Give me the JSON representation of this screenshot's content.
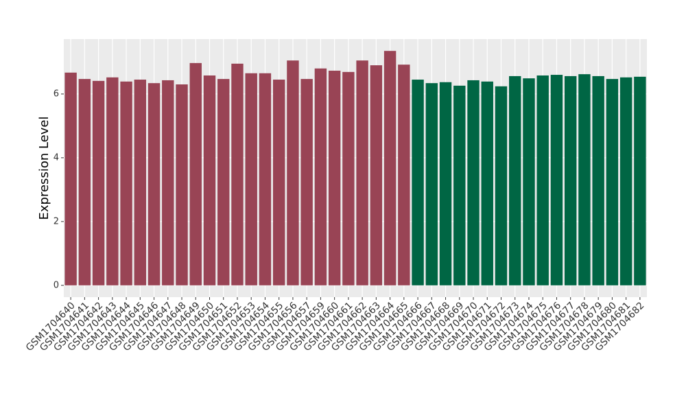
{
  "chart_data": {
    "type": "bar",
    "y_label": "Expression Level",
    "categories": [
      "GSM1704640",
      "GSM1704641",
      "GSM1704642",
      "GSM1704643",
      "GSM1704644",
      "GSM1704645",
      "GSM1704646",
      "GSM1704647",
      "GSM1704648",
      "GSM1704649",
      "GSM1704650",
      "GSM1704651",
      "GSM1704652",
      "GSM1704653",
      "GSM1704654",
      "GSM1704655",
      "GSM1704656",
      "GSM1704657",
      "GSM1704659",
      "GSM1704660",
      "GSM1704661",
      "GSM1704662",
      "GSM1704663",
      "GSM1704664",
      "GSM1704665",
      "GSM1704666",
      "GSM1704667",
      "GSM1704668",
      "GSM1704669",
      "GSM1704670",
      "GSM1704671",
      "GSM1704672",
      "GSM1704673",
      "GSM1704674",
      "GSM1704675",
      "GSM1704676",
      "GSM1704677",
      "GSM1704678",
      "GSM1704679",
      "GSM1704680",
      "GSM1704681",
      "GSM1704682"
    ],
    "values": [
      6.67,
      6.47,
      6.41,
      6.52,
      6.39,
      6.45,
      6.34,
      6.43,
      6.3,
      6.97,
      6.58,
      6.47,
      6.95,
      6.65,
      6.65,
      6.45,
      7.05,
      6.47,
      6.8,
      6.73,
      6.69,
      7.05,
      6.9,
      7.35,
      6.92,
      6.45,
      6.34,
      6.37,
      6.26,
      6.43,
      6.39,
      6.24,
      6.56,
      6.49,
      6.58,
      6.6,
      6.56,
      6.62,
      6.56,
      6.47,
      6.52,
      6.54
    ],
    "colors": [
      "#994455",
      "#994455",
      "#994455",
      "#994455",
      "#994455",
      "#994455",
      "#994455",
      "#994455",
      "#994455",
      "#994455",
      "#994455",
      "#994455",
      "#994455",
      "#994455",
      "#994455",
      "#994455",
      "#994455",
      "#994455",
      "#994455",
      "#994455",
      "#994455",
      "#994455",
      "#994455",
      "#994455",
      "#994455",
      "#006644",
      "#006644",
      "#006644",
      "#006644",
      "#006644",
      "#006644",
      "#006644",
      "#006644",
      "#006644",
      "#006644",
      "#006644",
      "#006644",
      "#006644",
      "#006644",
      "#006644",
      "#006644",
      "#006644"
    ],
    "ylim": [
      -0.37,
      7.72
    ],
    "yticks": [
      0,
      2,
      4,
      6
    ],
    "grid": true
  }
}
